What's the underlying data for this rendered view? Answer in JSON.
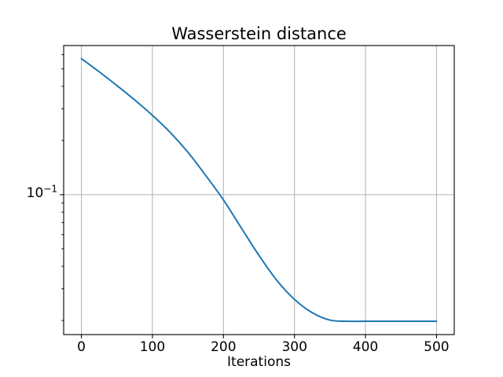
{
  "chart_data": {
    "type": "line",
    "title": "Wasserstein distance",
    "xlabel": "Iterations",
    "ylabel": "",
    "yscale": "log",
    "grid": true,
    "legend": "none",
    "xlim": [
      -25,
      525
    ],
    "ylim": [
      0.0167,
      0.674
    ],
    "x_ticks": [
      0,
      100,
      200,
      300,
      400,
      500
    ],
    "x_tick_labels": [
      "0",
      "100",
      "200",
      "300",
      "400",
      "500"
    ],
    "y_major_ticks": [
      0.1
    ],
    "y_major_tick_label": {
      "base": "10",
      "exponent": "−1"
    },
    "y_minor_ticks": [
      0.02,
      0.03,
      0.04,
      0.05,
      0.06,
      0.07,
      0.08,
      0.09,
      0.2,
      0.3,
      0.4,
      0.5,
      0.6
    ],
    "series": [
      {
        "name": "wasserstein-distance",
        "color": "#1f77b4",
        "x": [
          0,
          25,
          50,
          75,
          100,
          125,
          150,
          175,
          200,
          225,
          250,
          275,
          300,
          325,
          350,
          375,
          400,
          425,
          450,
          475,
          500
        ],
        "y": [
          0.57,
          0.482,
          0.404,
          0.336,
          0.276,
          0.222,
          0.172,
          0.128,
          0.0935,
          0.0655,
          0.046,
          0.0335,
          0.0262,
          0.0221,
          0.0201,
          0.0198,
          0.0198,
          0.0198,
          0.0198,
          0.0198,
          0.0198
        ]
      }
    ]
  },
  "colors": {
    "line": "#1f77b4",
    "grid": "#b0b0b0",
    "spine": "#000000",
    "tick": "#000000",
    "text": "#000000",
    "background": "#ffffff"
  }
}
